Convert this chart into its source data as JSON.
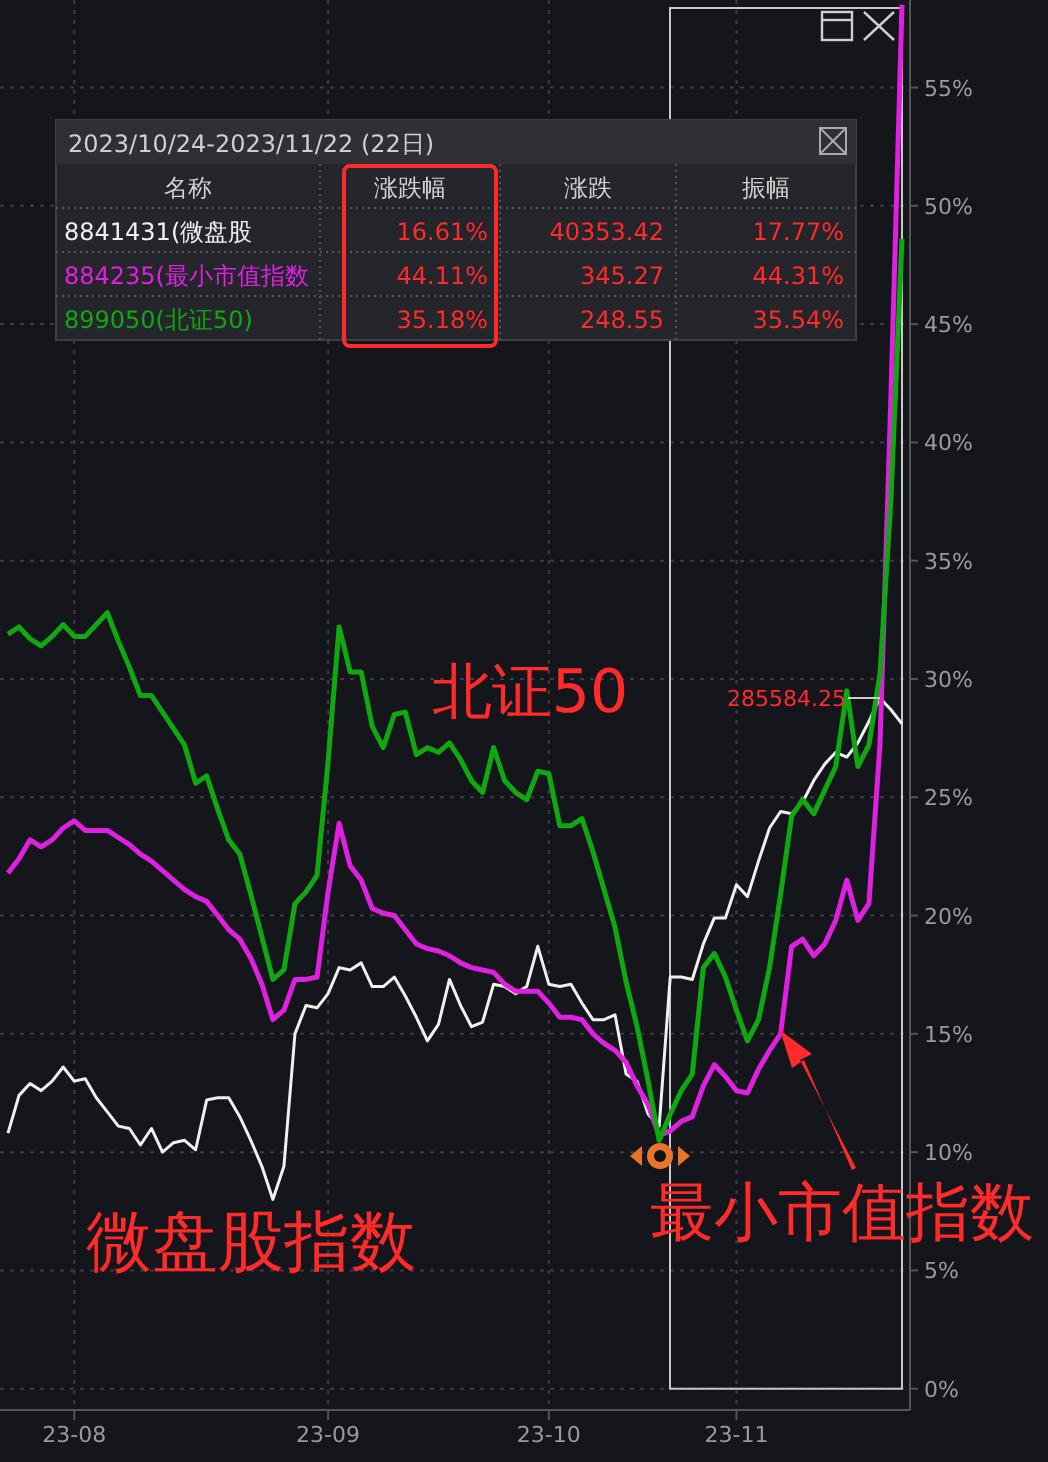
{
  "chart_data": [
    {
      "type": "line",
      "ylim": [
        -0.9,
        58.7
      ],
      "categories": [
        null,
        null,
        null,
        null,
        null,
        null,
        "23-08",
        null,
        null,
        null,
        null,
        null,
        null,
        null,
        null,
        null,
        null,
        null,
        null,
        null,
        null,
        null,
        null,
        null,
        null,
        null,
        null,
        null,
        null,
        "23-09",
        null,
        null,
        null,
        null,
        null,
        null,
        null,
        null,
        null,
        null,
        null,
        null,
        null,
        null,
        null,
        null,
        null,
        null,
        null,
        "23-10",
        null,
        null,
        null,
        null,
        null,
        null,
        null,
        null,
        null,
        null,
        null,
        null,
        null,
        null,
        null,
        null,
        "23-11",
        null,
        null,
        null,
        null,
        null,
        null,
        null,
        null,
        null,
        null,
        null,
        null,
        null,
        null,
        null
      ],
      "yticks": [
        {
          "value": 0,
          "label": "0%"
        },
        {
          "value": 5,
          "label": "5%"
        },
        {
          "value": 10,
          "label": "10%"
        },
        {
          "value": 15,
          "label": "15%"
        },
        {
          "value": 20,
          "label": "20%"
        },
        {
          "value": 25,
          "label": "25%"
        },
        {
          "value": 30,
          "label": "30%"
        },
        {
          "value": 35,
          "label": "35%"
        },
        {
          "value": 40,
          "label": "40%"
        },
        {
          "value": 45,
          "label": "45%"
        },
        {
          "value": 50,
          "label": "50%"
        },
        {
          "value": 55,
          "label": "55%"
        }
      ],
      "grid": true,
      "line_style": "solid",
      "marker": "none",
      "legend": "top left",
      "legend_title": "2023/10/24-2023/11/22 (22日)",
      "series": [
        {
          "name": "8841431(微盘股",
          "color": "#f0f0f0",
          "values": [
            10.8,
            12.4,
            12.9,
            12.6,
            13.0,
            13.6,
            13.0,
            13.1,
            12.3,
            11.7,
            11.1,
            11.0,
            10.3,
            11.0,
            10.0,
            10.4,
            10.5,
            10.1,
            12.2,
            12.3,
            12.3,
            11.5,
            10.5,
            9.4,
            8.0,
            9.4,
            15.0,
            16.2,
            16.1,
            16.7,
            17.8,
            17.7,
            18.0,
            17.0,
            17.0,
            17.4,
            16.6,
            15.7,
            14.7,
            15.4,
            17.3,
            16.2,
            15.3,
            15.5,
            17.1,
            17.0,
            16.7,
            17.0,
            18.7,
            17.1,
            17.0,
            17.1,
            16.3,
            15.6,
            15.6,
            15.8,
            13.3,
            13.0,
            11.6,
            11.1,
            17.4,
            17.4,
            17.3,
            18.8,
            19.9,
            19.9,
            21.3,
            20.8,
            22.3,
            23.7,
            24.4,
            24.3,
            24.8,
            25.7,
            26.4,
            26.9,
            26.7,
            27.3,
            28.2,
            29.2,
            28.7,
            28.1
          ]
        },
        {
          "name": "884235(最小市值指数",
          "color": "#e020e0",
          "values": [
            21.8,
            22.4,
            23.2,
            22.9,
            23.2,
            23.7,
            24.0,
            23.6,
            23.6,
            23.6,
            23.3,
            23.0,
            22.6,
            22.3,
            21.9,
            21.5,
            21.1,
            20.8,
            20.6,
            20.0,
            19.4,
            19.0,
            18.2,
            17.1,
            15.6,
            16.0,
            17.3,
            17.3,
            17.4,
            21.0,
            23.9,
            22.1,
            21.5,
            20.3,
            20.1,
            20.0,
            19.4,
            18.8,
            18.6,
            18.5,
            18.3,
            18.0,
            17.8,
            17.7,
            17.6,
            17.1,
            16.8,
            16.8,
            16.8,
            16.3,
            15.7,
            15.7,
            15.6,
            15.0,
            14.6,
            14.3,
            13.8,
            12.8,
            12.0,
            10.7,
            10.9,
            11.3,
            11.5,
            12.8,
            13.7,
            13.2,
            12.6,
            12.5,
            13.5,
            14.3,
            15.0,
            18.7,
            19.0,
            18.3,
            18.8,
            19.8,
            21.5,
            19.8,
            20.5,
            27.2,
            42.0,
            58.5
          ]
        },
        {
          "name": "899050(北证50)",
          "color": "#10a810",
          "values": [
            31.9,
            32.2,
            31.7,
            31.4,
            31.8,
            32.3,
            31.8,
            31.8,
            32.3,
            32.8,
            31.6,
            30.5,
            29.3,
            29.3,
            28.6,
            27.9,
            27.2,
            25.6,
            25.9,
            24.5,
            23.2,
            22.6,
            20.9,
            19.1,
            17.3,
            17.7,
            20.5,
            21.0,
            21.7,
            26.5,
            32.2,
            30.3,
            30.3,
            28.0,
            27.1,
            28.5,
            28.6,
            26.8,
            27.1,
            26.9,
            27.3,
            26.6,
            25.7,
            25.2,
            27.1,
            25.7,
            25.2,
            24.9,
            26.1,
            26.0,
            23.8,
            23.8,
            24.1,
            22.7,
            21.1,
            19.5,
            17.2,
            15.3,
            13.0,
            10.5,
            11.6,
            12.6,
            13.3,
            17.8,
            18.4,
            17.4,
            16.0,
            14.7,
            15.6,
            17.8,
            20.9,
            24.2,
            24.9,
            24.3,
            25.3,
            26.3,
            29.5,
            26.3,
            27.2,
            30.2,
            37.6,
            48.6
          ]
        }
      ],
      "annotations": [
        "北证50",
        "微盘股指数",
        "最小市值指数",
        "285584.25",
        "名称",
        "涨跌幅",
        "涨跌",
        "振幅",
        "16.61%",
        "40353.42",
        "17.77%",
        "44.11%",
        "345.27",
        "44.31%",
        "35.18%",
        "248.55",
        "35.54%"
      ]
    }
  ]
}
